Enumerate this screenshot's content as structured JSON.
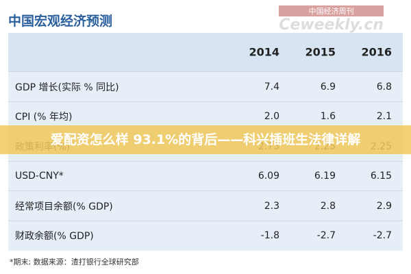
{
  "header": {
    "title": "中国宏观经济预测",
    "logo_cn": "中国经济周刊",
    "logo_en": "Ceweekly.cn"
  },
  "table": {
    "columns": [
      "2014",
      "2015",
      "2016"
    ],
    "rows": [
      [
        "GDP 增长(实际 % 同比)",
        "7.4",
        "6.9",
        "6.8"
      ],
      [
        "CPI (% 年均)",
        "2.0",
        "1.6",
        "2.1"
      ],
      [
        "政策利率(%)",
        "2.75",
        "2.25",
        "2.25"
      ],
      [
        "USD-CNY*",
        "6.09",
        "6.19",
        "6.15"
      ],
      [
        "经常项目余额(% GDP)",
        "2.3",
        "2.8",
        "2.9"
      ],
      [
        "财政余额(% GDP)",
        "-1.8",
        "-2.7",
        "-2.7"
      ]
    ]
  },
  "footnote": "*期末;    数据来源：渣打银行全球研究部",
  "banner": "爱配资怎么样 93.1%的背后——科兴插班生法律详解"
}
